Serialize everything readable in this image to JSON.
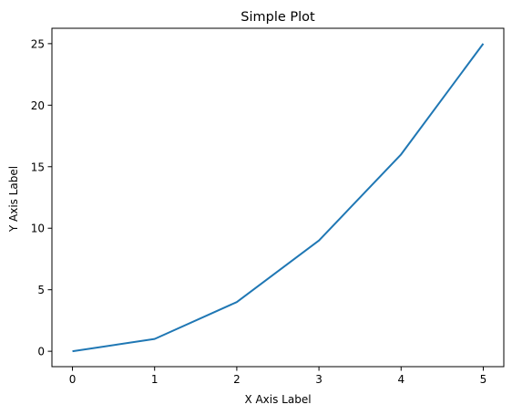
{
  "chart_data": {
    "type": "line",
    "title": "Simple Plot",
    "xlabel": "X Axis Label",
    "ylabel": "Y Axis Label",
    "x": [
      0,
      1,
      2,
      3,
      4,
      5
    ],
    "series": [
      {
        "values": [
          0,
          1,
          4,
          9,
          16,
          25
        ],
        "color": "#1f77b4"
      }
    ],
    "xlim": [
      -0.25,
      5.25
    ],
    "ylim": [
      -1.25,
      26.25
    ],
    "xticks": [
      0,
      1,
      2,
      3,
      4,
      5
    ],
    "yticks": [
      0,
      5,
      10,
      15,
      20,
      25
    ],
    "grid": false,
    "legend": "none"
  }
}
